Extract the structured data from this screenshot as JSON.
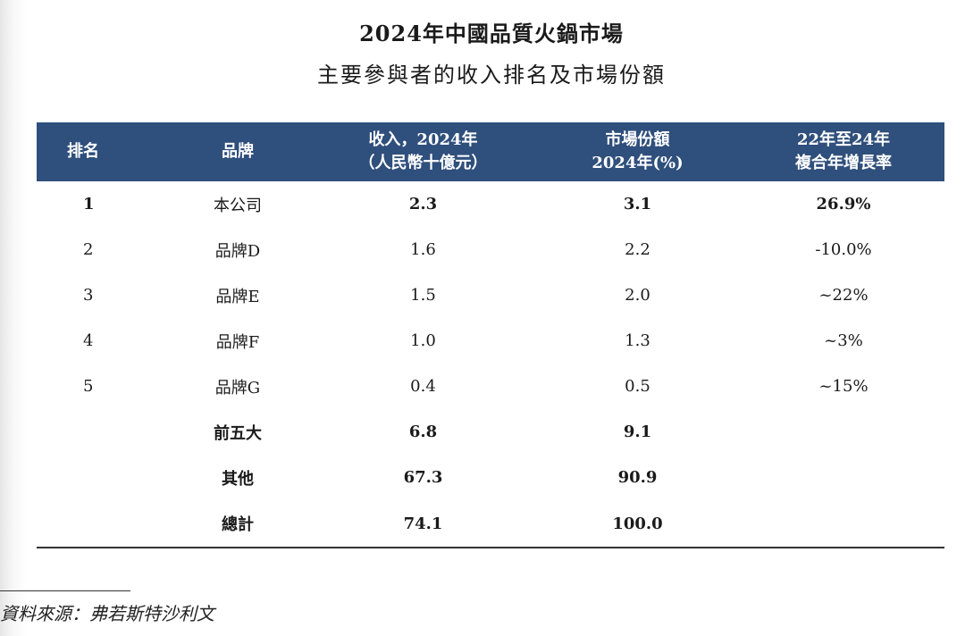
{
  "title_line1": "2024年中國品質火鍋市場",
  "title_line2": "主要參與者的收入排名及市場份額",
  "table": {
    "headers": {
      "rank": "排名",
      "brand": "品牌",
      "revenue_line1": "收入，2024年",
      "revenue_line2": "（人民幣十億元）",
      "share_line1": "市場份額",
      "share_line2": "2024年(%)",
      "cagr_line1": "22年至24年",
      "cagr_line2": "複合年增長率"
    },
    "rows": [
      {
        "rank": "1",
        "brand": "本公司",
        "revenue": "2.3",
        "share": "3.1",
        "cagr": "26.9%"
      },
      {
        "rank": "2",
        "brand": "品牌D",
        "revenue": "1.6",
        "share": "2.2",
        "cagr": "-10.0%"
      },
      {
        "rank": "3",
        "brand": "品牌E",
        "revenue": "1.5",
        "share": "2.0",
        "cagr": "~22%"
      },
      {
        "rank": "4",
        "brand": "品牌F",
        "revenue": "1.0",
        "share": "1.3",
        "cagr": "~3%"
      },
      {
        "rank": "5",
        "brand": "品牌G",
        "revenue": "0.4",
        "share": "0.5",
        "cagr": "~15%"
      }
    ],
    "summary": [
      {
        "label": "前五大",
        "revenue": "6.8",
        "share": "9.1"
      },
      {
        "label": "其他",
        "revenue": "67.3",
        "share": "90.9"
      },
      {
        "label": "總計",
        "revenue": "74.1",
        "share": "100.0"
      }
    ]
  },
  "source_note": "資料來源：弗若斯特沙利文",
  "colors": {
    "header_bg": "#2f4f7c",
    "header_text": "#ffffff",
    "rule": "#333333"
  }
}
